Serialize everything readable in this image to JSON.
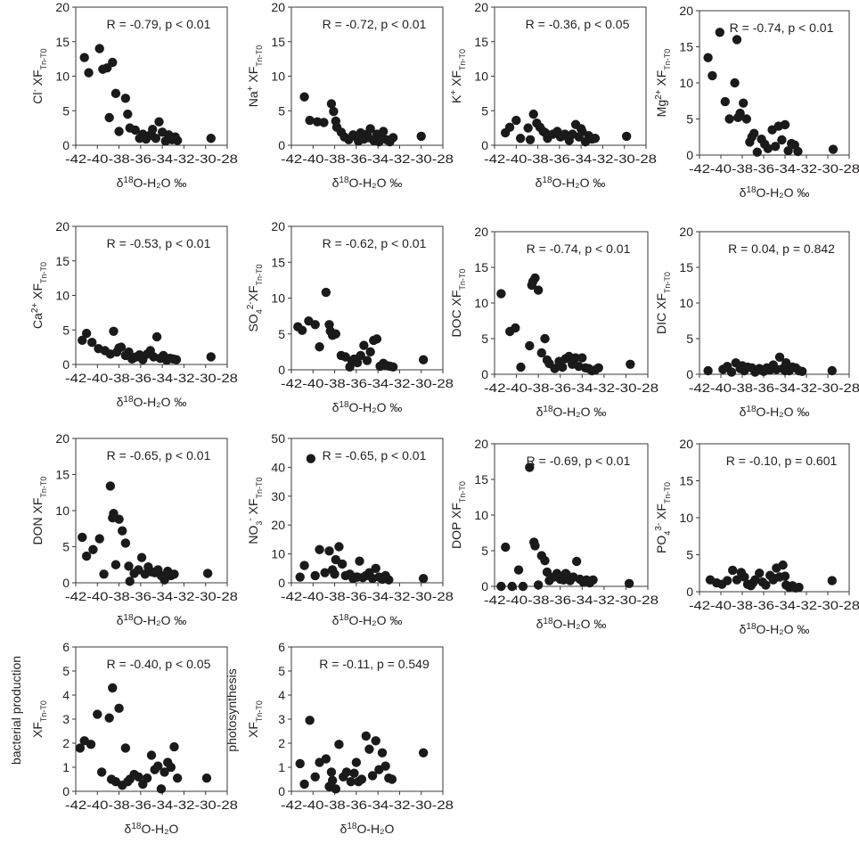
{
  "figure": {
    "x_axis_ticks": [
      "-42",
      "-40",
      "-38",
      "-36",
      "-34",
      "-32",
      "-30",
      "-28"
    ]
  },
  "chart_data": [
    {
      "type": "scatter",
      "id": "cl",
      "ylabel_html": "Cl<tspan baseline-shift='super' font-size='10'>-</tspan> XF<tspan baseline-shift='sub' font-size='9'>Tn-T0</tspan>",
      "xlabel": "δ18O-H2O ‰",
      "annotation": "R = -0.79, p < 0.01",
      "ylim": [
        0,
        20
      ],
      "yticks": [
        0,
        5,
        10,
        15,
        20
      ],
      "xlim": [
        -42,
        -28
      ],
      "x": [
        -41.2,
        -40.8,
        -39.8,
        -39.5,
        -38.9,
        -38.6,
        -38.3,
        -37.4,
        -37.2,
        -37.0,
        -36.5,
        -36.1,
        -35.8,
        -35.5,
        -35.2,
        -34.9,
        -34.6,
        -34.3,
        -34.0,
        -33.7,
        -33.4,
        -33.1,
        -32.8,
        -32.6,
        -29.5,
        -39.1,
        -38.0,
        -35.0
      ],
      "y": [
        12.7,
        10.5,
        14.0,
        11.0,
        4.0,
        12.0,
        7.5,
        6.8,
        4.5,
        2.5,
        2.2,
        1.0,
        1.6,
        0.9,
        1.4,
        2.3,
        1.0,
        3.4,
        1.9,
        0.6,
        1.5,
        0.8,
        1.2,
        0.7,
        1.0,
        11.2,
        2.0,
        1.5
      ]
    },
    {
      "type": "scatter",
      "id": "na",
      "ylabel_html": "Na<tspan baseline-shift='super' font-size='10'>+</tspan> XF<tspan baseline-shift='sub' font-size='9'>Tn-T0</tspan>",
      "xlabel": "δ18O-H2O ‰",
      "annotation": "R = -0.72, p < 0.01",
      "ylim": [
        0,
        20
      ],
      "yticks": [
        0,
        5,
        10,
        15,
        20
      ],
      "xlim": [
        -42,
        -28
      ],
      "x": [
        -40.8,
        -40.3,
        -39.6,
        -39.0,
        -38.3,
        -38.1,
        -37.8,
        -37.4,
        -37.1,
        -36.7,
        -36.3,
        -36.0,
        -35.6,
        -35.3,
        -35.0,
        -34.7,
        -34.4,
        -34.1,
        -33.8,
        -33.5,
        -33.2,
        -32.9,
        -32.6,
        -30.0,
        -37.9,
        -35.8,
        -34.9,
        -33.9
      ],
      "y": [
        7.0,
        3.6,
        3.4,
        3.3,
        6.0,
        4.9,
        2.6,
        1.9,
        1.2,
        0.8,
        1.5,
        1.2,
        1.8,
        0.9,
        1.6,
        2.4,
        0.7,
        1.6,
        1.2,
        2.0,
        0.8,
        0.5,
        1.1,
        1.3,
        3.5,
        0.6,
        1.1,
        0.5
      ]
    },
    {
      "type": "scatter",
      "id": "k",
      "ylabel_html": "K<tspan baseline-shift='super' font-size='10'>+</tspan> XF<tspan baseline-shift='sub' font-size='9'>Tn-T0</tspan>",
      "xlabel": "δ18O-H2O ‰",
      "annotation": "R = -0.36, p < 0.05",
      "ylim": [
        0,
        20
      ],
      "yticks": [
        0,
        5,
        10,
        15,
        20
      ],
      "xlim": [
        -42,
        -28
      ],
      "x": [
        -41.0,
        -40.6,
        -40.0,
        -39.6,
        -38.9,
        -38.4,
        -38.1,
        -37.8,
        -37.5,
        -37.1,
        -36.6,
        -36.2,
        -35.9,
        -35.5,
        -35.1,
        -34.8,
        -34.5,
        -34.2,
        -33.9,
        -33.6,
        -33.3,
        -33.0,
        -32.7,
        -29.8,
        -38.7,
        -37.3,
        -35.7,
        -34.0
      ],
      "y": [
        1.8,
        2.6,
        3.6,
        1.0,
        2.5,
        4.5,
        3.2,
        2.6,
        2.0,
        1.0,
        1.6,
        2.0,
        1.2,
        1.6,
        0.7,
        1.6,
        3.0,
        1.2,
        2.0,
        0.5,
        1.4,
        0.9,
        1.0,
        1.3,
        0.8,
        1.8,
        1.4,
        2.4
      ]
    },
    {
      "type": "scatter",
      "id": "mg",
      "ylabel_html": "Mg<tspan baseline-shift='super' font-size='10'>2+</tspan> XF<tspan baseline-shift='sub' font-size='9'>Tn-T0</tspan>",
      "xlabel": "δ18O-H2O ‰",
      "annotation": "R = -0.74, p < 0.01",
      "ylim": [
        0,
        20
      ],
      "yticks": [
        0,
        5,
        10,
        15,
        20
      ],
      "xlim": [
        -42,
        -28
      ],
      "x": [
        -41.2,
        -40.8,
        -40.1,
        -39.6,
        -39.2,
        -38.7,
        -38.5,
        -38.2,
        -37.9,
        -37.6,
        -37.3,
        -36.9,
        -36.6,
        -36.2,
        -35.9,
        -35.6,
        -35.2,
        -34.9,
        -34.6,
        -34.3,
        -34.0,
        -33.7,
        -33.4,
        -33.1,
        -32.8,
        -29.5,
        -38.4,
        -37.1
      ],
      "y": [
        13.5,
        11.0,
        17.0,
        7.4,
        5.0,
        10.0,
        16.0,
        5.8,
        7.2,
        5.0,
        1.8,
        3.0,
        0.4,
        2.2,
        1.5,
        0.9,
        3.5,
        1.2,
        4.0,
        2.1,
        4.2,
        0.6,
        1.6,
        1.4,
        0.5,
        0.8,
        5.2,
        2.5
      ]
    },
    {
      "type": "scatter",
      "id": "ca",
      "ylabel_html": "Ca<tspan baseline-shift='super' font-size='10'>2+</tspan> XF<tspan baseline-shift='sub' font-size='9'>Tn-T0</tspan>",
      "xlabel": "δ18O-H2O ‰",
      "annotation": "R = -0.53, p < 0.01",
      "ylim": [
        0,
        20
      ],
      "yticks": [
        0,
        5,
        10,
        15,
        20
      ],
      "xlim": [
        -42,
        -28
      ],
      "x": [
        -41.4,
        -41.0,
        -40.5,
        -39.9,
        -39.3,
        -38.8,
        -38.5,
        -38.2,
        -37.8,
        -37.4,
        -37.1,
        -36.8,
        -36.4,
        -36.1,
        -35.8,
        -35.4,
        -35.1,
        -34.8,
        -34.5,
        -34.2,
        -33.9,
        -33.6,
        -33.3,
        -33.0,
        -32.7,
        -29.5,
        -38.0,
        -36.6
      ],
      "y": [
        3.5,
        4.5,
        3.2,
        2.3,
        2.0,
        1.5,
        4.8,
        1.8,
        2.5,
        1.3,
        1.8,
        0.8,
        1.1,
        1.4,
        0.7,
        1.5,
        2.0,
        1.1,
        4.0,
        0.9,
        1.3,
        0.6,
        0.9,
        0.8,
        0.7,
        1.1,
        2.4,
        1.0
      ]
    },
    {
      "type": "scatter",
      "id": "so4",
      "ylabel_html": "SO<tspan baseline-shift='sub' font-size='9'>4</tspan><tspan baseline-shift='super' font-size='10'>2-</tspan>XF<tspan baseline-shift='sub' font-size='9'>Tn-T0</tspan>",
      "xlabel": "δ18O-H2O ‰",
      "annotation": "R = -0.62, p < 0.01",
      "ylim": [
        0,
        20
      ],
      "yticks": [
        0,
        5,
        10,
        15,
        20
      ],
      "xlim": [
        -42,
        -28
      ],
      "x": [
        -41.4,
        -41.0,
        -40.4,
        -39.8,
        -39.4,
        -38.8,
        -38.5,
        -38.2,
        -37.9,
        -37.4,
        -37.0,
        -36.6,
        -36.2,
        -35.9,
        -35.6,
        -35.3,
        -35.0,
        -34.7,
        -34.4,
        -34.1,
        -33.8,
        -33.5,
        -33.2,
        -32.9,
        -32.6,
        -29.8,
        -38.4,
        -36.4
      ],
      "y": [
        6.0,
        5.5,
        6.8,
        6.3,
        3.2,
        10.8,
        6.3,
        4.8,
        5.0,
        2.0,
        1.8,
        0.4,
        1.5,
        1.0,
        2.0,
        3.4,
        1.3,
        2.5,
        4.1,
        4.3,
        0.5,
        0.9,
        0.6,
        0.5,
        0.4,
        1.4,
        5.4,
        1.2
      ]
    },
    {
      "type": "scatter",
      "id": "doc",
      "ylabel_html": "DOC XF<tspan baseline-shift='sub' font-size='9'>Tn-T0</tspan>",
      "xlabel": "δ18O-H2O ‰",
      "annotation": "R = -0.74, p < 0.01",
      "ylim": [
        0,
        20
      ],
      "yticks": [
        0,
        5,
        10,
        15,
        20
      ],
      "xlim": [
        -42,
        -28
      ],
      "x": [
        -41.4,
        -40.6,
        -40.1,
        -39.6,
        -38.8,
        -38.6,
        -38.3,
        -38.0,
        -37.7,
        -37.4,
        -37.0,
        -36.5,
        -36.1,
        -35.8,
        -35.5,
        -35.2,
        -34.9,
        -34.6,
        -34.3,
        -34.0,
        -33.7,
        -33.4,
        -33.1,
        -32.8,
        -32.5,
        -29.6,
        -38.5,
        -37.2
      ],
      "y": [
        11.3,
        6.0,
        6.5,
        1.0,
        4.0,
        12.5,
        13.5,
        11.8,
        3.0,
        5.0,
        1.5,
        0.8,
        1.8,
        1.0,
        2.2,
        2.5,
        1.4,
        2.3,
        1.1,
        2.3,
        0.9,
        0.8,
        0.5,
        0.6,
        0.9,
        1.4,
        13.0,
        2.0
      ]
    },
    {
      "type": "scatter",
      "id": "dic",
      "ylabel_html": "DIC XF<tspan baseline-shift='sub' font-size='9'>Tn-T0</tspan>",
      "xlabel": "δ18O-H2O ‰",
      "annotation": "R = 0.04, p = 0.842",
      "ylim": [
        0,
        20
      ],
      "yticks": [
        0,
        5,
        10,
        15,
        20
      ],
      "xlim": [
        -42,
        -28
      ],
      "x": [
        -41.2,
        -39.8,
        -39.4,
        -39.0,
        -38.6,
        -38.2,
        -37.8,
        -37.5,
        -37.1,
        -36.8,
        -36.4,
        -36.0,
        -35.7,
        -35.4,
        -35.1,
        -34.8,
        -34.5,
        -34.2,
        -33.9,
        -33.6,
        -33.3,
        -33.0,
        -32.7,
        -32.4,
        -29.6,
        -38.0,
        -36.6,
        -34.0
      ],
      "y": [
        0.5,
        0.7,
        1.1,
        0.3,
        1.6,
        0.8,
        0.5,
        1.0,
        0.9,
        0.3,
        0.8,
        0.4,
        0.9,
        0.6,
        1.3,
        0.7,
        2.4,
        0.8,
        1.6,
        0.5,
        1.0,
        0.9,
        0.5,
        0.4,
        0.5,
        1.2,
        0.6,
        0.5
      ]
    },
    {
      "type": "scatter",
      "id": "don",
      "ylabel_html": "DON XF<tspan baseline-shift='sub' font-size='9'>Tn-T0</tspan>",
      "xlabel": "δ18O-H2O ‰",
      "annotation": "R = -0.65, p < 0.01",
      "ylim": [
        0,
        20
      ],
      "yticks": [
        0,
        5,
        10,
        15,
        20
      ],
      "xlim": [
        -42,
        -28
      ],
      "x": [
        -41.4,
        -41.0,
        -40.4,
        -39.8,
        -39.4,
        -38.8,
        -38.5,
        -38.3,
        -38.0,
        -37.7,
        -37.4,
        -37.0,
        -36.6,
        -36.2,
        -35.9,
        -35.6,
        -35.3,
        -35.0,
        -34.7,
        -34.4,
        -34.1,
        -33.8,
        -33.5,
        -33.2,
        -32.9,
        -29.8,
        -38.6,
        -37.1
      ],
      "y": [
        6.3,
        3.7,
        4.6,
        6.1,
        1.2,
        13.4,
        9.6,
        2.5,
        8.8,
        7.2,
        5.5,
        0.2,
        1.3,
        1.8,
        3.5,
        1.2,
        2.2,
        1.5,
        1.4,
        1.8,
        1.0,
        0.4,
        1.6,
        1.0,
        1.2,
        1.3,
        9.0,
        2.3
      ]
    },
    {
      "type": "scatter",
      "id": "no3",
      "ylabel_html": "NO<tspan baseline-shift='sub' font-size='9'>3</tspan><tspan baseline-shift='super' font-size='10'>-</tspan> XF<tspan baseline-shift='sub' font-size='9'>Tn-T0</tspan>",
      "xlabel": "δ18O-H2O ‰",
      "annotation": "R = -0.65, p < 0.01",
      "ylim": [
        0,
        50
      ],
      "yticks": [
        0,
        10,
        20,
        30,
        40,
        50
      ],
      "xlim": [
        -42,
        -28
      ],
      "x": [
        -41.2,
        -40.8,
        -40.2,
        -39.8,
        -39.4,
        -38.9,
        -38.5,
        -38.2,
        -37.9,
        -37.6,
        -37.3,
        -37.0,
        -36.6,
        -36.3,
        -36.0,
        -35.7,
        -35.4,
        -35.1,
        -34.8,
        -34.5,
        -34.2,
        -33.9,
        -33.6,
        -33.3,
        -33.0,
        -29.8,
        -38.0,
        -35.9
      ],
      "y": [
        2.0,
        6.0,
        43.0,
        2.5,
        11.5,
        3.5,
        11.0,
        4.5,
        8.0,
        12.5,
        6.5,
        2.5,
        3.0,
        1.5,
        2.0,
        7.5,
        1.8,
        2.5,
        3.5,
        1.5,
        5.0,
        2.0,
        1.2,
        2.5,
        1.0,
        1.5,
        3.0,
        2.0
      ]
    },
    {
      "type": "scatter",
      "id": "dop",
      "ylabel_html": "DOP XF<tspan baseline-shift='sub' font-size='9'>Tn-T0</tspan>",
      "xlabel": "δ18O-H2O ‰",
      "annotation": "R = -0.69, p < 0.01",
      "ylim": [
        0,
        20
      ],
      "yticks": [
        0,
        5,
        10,
        15,
        20
      ],
      "xlim": [
        -42,
        -28
      ],
      "x": [
        -41.4,
        -41.0,
        -40.4,
        -39.8,
        -39.4,
        -38.8,
        -38.4,
        -38.3,
        -38.0,
        -37.7,
        -37.4,
        -37.0,
        -36.6,
        -36.3,
        -36.0,
        -35.7,
        -35.4,
        -35.1,
        -34.8,
        -34.5,
        -34.2,
        -33.9,
        -33.6,
        -33.3,
        -33.0,
        -29.7,
        -37.2,
        -35.5
      ],
      "y": [
        0.0,
        5.5,
        0.0,
        2.3,
        0.0,
        16.7,
        6.2,
        5.7,
        0.2,
        4.3,
        3.6,
        0.8,
        1.3,
        1.8,
        1.0,
        0.9,
        1.6,
        0.8,
        1.3,
        3.5,
        1.0,
        0.6,
        0.9,
        0.5,
        0.9,
        0.4,
        2.0,
        1.8
      ]
    },
    {
      "type": "scatter",
      "id": "po4",
      "ylabel_html": "PO<tspan baseline-shift='sub' font-size='9'>4</tspan><tspan baseline-shift='super' font-size='10'>3-</tspan> XF<tspan baseline-shift='sub' font-size='9'>Tn-T0</tspan>",
      "xlabel": "δ18O-H2O ‰",
      "annotation": "R = -0.10, p = 0.601",
      "ylim": [
        0,
        20
      ],
      "yticks": [
        0,
        5,
        10,
        15,
        20
      ],
      "xlim": [
        -42,
        -28
      ],
      "x": [
        -41.0,
        -40.4,
        -39.9,
        -39.4,
        -38.9,
        -38.5,
        -38.1,
        -37.8,
        -37.5,
        -37.2,
        -36.8,
        -36.4,
        -36.1,
        -35.8,
        -35.4,
        -35.1,
        -34.8,
        -34.5,
        -34.2,
        -33.9,
        -33.6,
        -33.3,
        -33.0,
        -32.7,
        -29.6,
        -37.0,
        -35.0,
        -34.0
      ],
      "y": [
        1.6,
        1.2,
        1.0,
        1.5,
        2.9,
        1.6,
        2.6,
        2.0,
        1.0,
        0.8,
        1.6,
        2.5,
        1.3,
        0.9,
        2.2,
        1.6,
        3.2,
        2.0,
        3.6,
        0.9,
        0.6,
        0.8,
        0.5,
        0.6,
        1.5,
        1.2,
        1.8,
        2.1
      ]
    },
    {
      "type": "scatter",
      "id": "bact",
      "ylabel_html": "XF<tspan baseline-shift='sub' font-size='9'>Tn-T0</tspan>",
      "ylabel2": "bacterial production",
      "xlabel": "δ18O-H2O",
      "annotation": "R = -0.40, p < 0.05",
      "ylim": [
        0,
        6
      ],
      "yticks": [
        0,
        1,
        2,
        3,
        4,
        5,
        6
      ],
      "xlim": [
        -42,
        -28
      ],
      "x": [
        -41.6,
        -41.2,
        -40.6,
        -40.0,
        -39.6,
        -38.9,
        -38.6,
        -38.3,
        -38.0,
        -37.7,
        -37.4,
        -37.0,
        -36.6,
        -36.2,
        -35.8,
        -35.4,
        -35.0,
        -34.7,
        -34.4,
        -34.1,
        -33.8,
        -33.5,
        -33.2,
        -32.9,
        -32.6,
        -29.9,
        -38.7,
        -37.2
      ],
      "y": [
        1.8,
        2.1,
        1.95,
        3.2,
        0.8,
        3.05,
        4.3,
        0.4,
        3.45,
        0.25,
        1.8,
        0.5,
        0.7,
        0.6,
        0.3,
        0.55,
        1.5,
        0.9,
        1.05,
        0.1,
        0.8,
        1.2,
        1.0,
        1.85,
        0.55,
        0.55,
        0.5,
        0.4
      ]
    },
    {
      "type": "scatter",
      "id": "photo",
      "ylabel_html": "XF<tspan baseline-shift='sub' font-size='9'>Tn-T0</tspan>",
      "ylabel2": "photosynthesis",
      "xlabel": "δ18O-H2O",
      "annotation": "R = -0.11, p = 0.549",
      "ylim": [
        0,
        6
      ],
      "yticks": [
        0,
        1,
        2,
        3,
        4,
        5,
        6
      ],
      "xlim": [
        -42,
        -28
      ],
      "x": [
        -41.2,
        -40.8,
        -40.3,
        -39.8,
        -39.4,
        -38.8,
        -38.5,
        -38.2,
        -37.9,
        -37.6,
        -37.2,
        -36.9,
        -36.5,
        -36.2,
        -35.8,
        -35.5,
        -35.1,
        -34.8,
        -34.5,
        -34.2,
        -33.9,
        -33.6,
        -33.3,
        -33.0,
        -32.7,
        -29.8,
        -38.3,
        -36.0
      ],
      "y": [
        1.15,
        0.3,
        2.95,
        0.6,
        1.2,
        1.35,
        0.2,
        0.45,
        0.1,
        1.95,
        0.6,
        0.8,
        0.4,
        0.75,
        0.4,
        0.5,
        2.3,
        1.75,
        0.65,
        2.1,
        0.9,
        1.6,
        1.05,
        0.55,
        0.5,
        1.6,
        0.8,
        1.2
      ]
    }
  ]
}
